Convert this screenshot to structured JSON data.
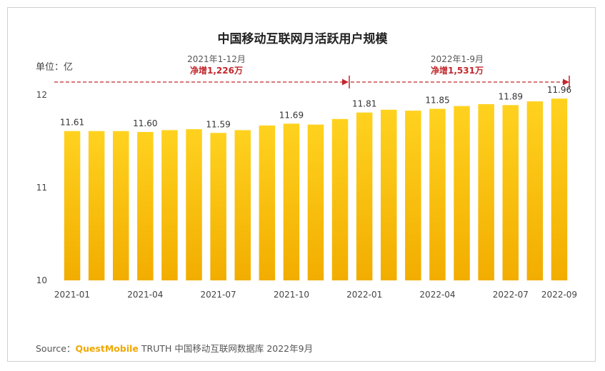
{
  "chart_data": {
    "type": "bar",
    "title": "中国移动互联网月活跃用户规模",
    "ylabel": "单位：亿",
    "ylim": [
      10,
      12
    ],
    "yticks": [
      "10",
      "11",
      "12"
    ],
    "categories": [
      "2021-01",
      "2021-02",
      "2021-03",
      "2021-04",
      "2021-05",
      "2021-06",
      "2021-07",
      "2021-08",
      "2021-09",
      "2021-10",
      "2021-11",
      "2021-12",
      "2022-01",
      "2022-02",
      "2022-03",
      "2022-04",
      "2022-05",
      "2022-06",
      "2022-07",
      "2022-08",
      "2022-09"
    ],
    "xtick_labels": [
      "2021-01",
      "2021-04",
      "2021-07",
      "2021-10",
      "2022-01",
      "2022-04",
      "2022-07",
      "2022-09"
    ],
    "values": [
      11.61,
      11.61,
      11.61,
      11.6,
      11.62,
      11.63,
      11.59,
      11.62,
      11.67,
      11.69,
      11.68,
      11.74,
      11.81,
      11.84,
      11.83,
      11.85,
      11.88,
      11.9,
      11.89,
      11.93,
      11.96
    ],
    "data_labels": [
      {
        "category": "2021-01",
        "text": "11.61"
      },
      {
        "category": "2021-04",
        "text": "11.60"
      },
      {
        "category": "2021-07",
        "text": "11.59"
      },
      {
        "category": "2021-10",
        "text": "11.69"
      },
      {
        "category": "2022-01",
        "text": "11.81"
      },
      {
        "category": "2022-04",
        "text": "11.85"
      },
      {
        "category": "2022-07",
        "text": "11.89"
      },
      {
        "category": "2022-09",
        "text": "11.96"
      }
    ],
    "annotations": [
      {
        "range": "2021年1-12月",
        "text": "净增1,226万"
      },
      {
        "range": "2022年1-9月",
        "text": "净增1,531万"
      }
    ],
    "colors": {
      "bar_top": "#ffd21f",
      "bar_bottom": "#f2ad00",
      "arrow": "#c0282d"
    }
  },
  "source": {
    "prefix": "Source：",
    "brand": "QuestMobile",
    "rest": "TRUTH 中国移动互联网数据库 2022年9月"
  }
}
